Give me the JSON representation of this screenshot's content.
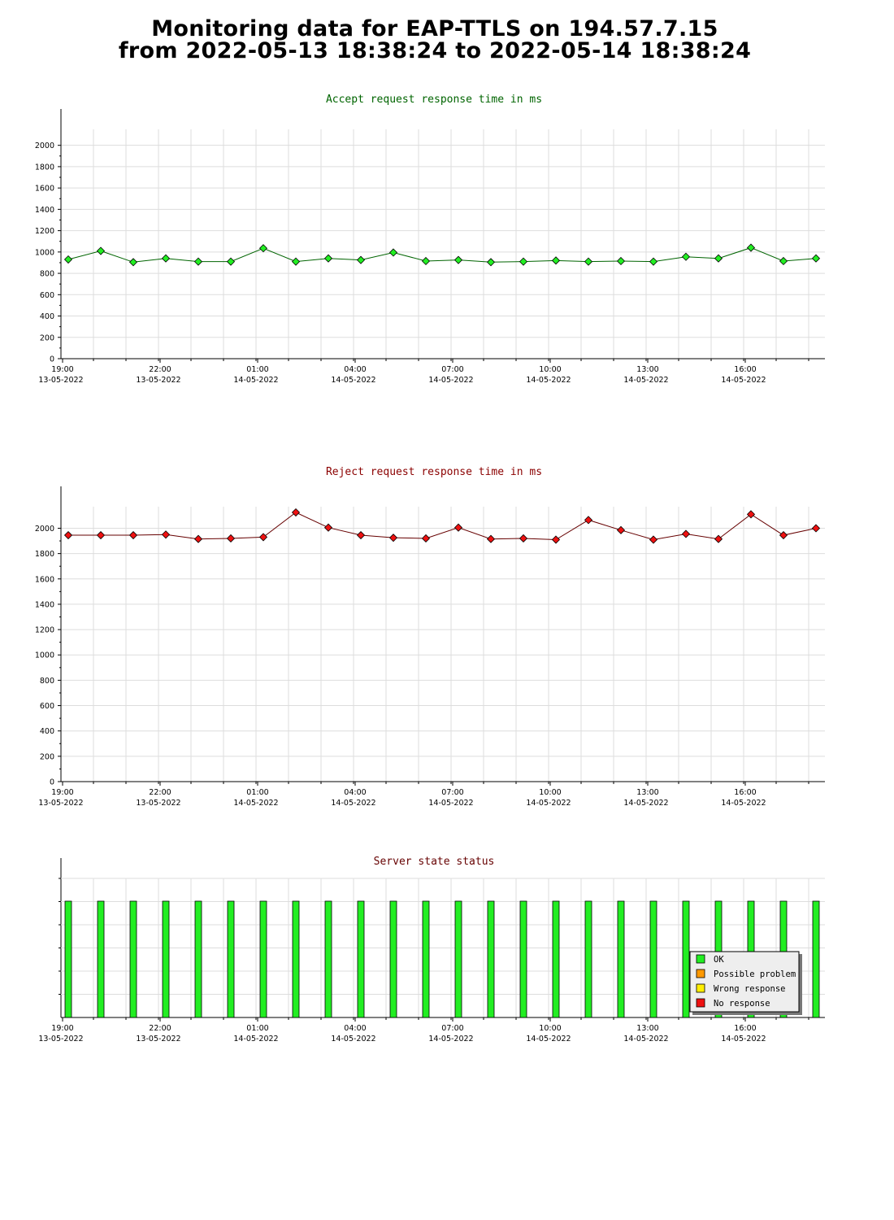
{
  "header": {
    "line1": "Monitoring data for EAP-TTLS on 194.57.7.15",
    "line2": "from 2022-05-13 18:38:24 to 2022-05-14 18:38:24"
  },
  "colors": {
    "accept_title": "#006400",
    "reject_title": "#8b0000",
    "status_title": "#660000",
    "accept_marker": "#22ee22",
    "accept_line": "#006400",
    "reject_marker": "#ee1111",
    "reject_line": "#660000",
    "ok": "#22ee22",
    "possible_problem": "#ff9900",
    "wrong_response": "#ffee00",
    "no_response": "#ee1111",
    "grid": "#dddddd"
  },
  "x_ticks": [
    {
      "time": "19:00",
      "date": "13-05-2022"
    },
    {
      "time": "22:00",
      "date": "13-05-2022"
    },
    {
      "time": "01:00",
      "date": "14-05-2022"
    },
    {
      "time": "04:00",
      "date": "14-05-2022"
    },
    {
      "time": "07:00",
      "date": "14-05-2022"
    },
    {
      "time": "10:00",
      "date": "14-05-2022"
    },
    {
      "time": "13:00",
      "date": "14-05-2022"
    },
    {
      "time": "16:00",
      "date": "14-05-2022"
    }
  ],
  "chart_data": [
    {
      "type": "line",
      "title": "Accept request response time in ms",
      "ylim": [
        0,
        2150
      ],
      "y_ticks": [
        0,
        200,
        400,
        600,
        800,
        1000,
        1200,
        1400,
        1600,
        1800,
        2000
      ],
      "grid": true,
      "series": [
        {
          "values": [
            930,
            1010,
            905,
            940,
            910,
            910,
            1035,
            910,
            940,
            925,
            995,
            915,
            925,
            905,
            910,
            920,
            910,
            915,
            910,
            955,
            940,
            1040,
            915,
            940
          ]
        }
      ]
    },
    {
      "type": "line",
      "title": "Reject request response time in ms",
      "ylim": [
        0,
        2170
      ],
      "y_ticks": [
        0,
        200,
        400,
        600,
        800,
        1000,
        1200,
        1400,
        1600,
        1800,
        2000
      ],
      "grid": true,
      "series": [
        {
          "values": [
            1945,
            1945,
            1945,
            1950,
            1915,
            1920,
            1930,
            2125,
            2005,
            1945,
            1925,
            1920,
            2005,
            1915,
            1920,
            1910,
            2065,
            1985,
            1910,
            1955,
            1915,
            2110,
            1945,
            2000
          ]
        }
      ]
    },
    {
      "type": "bar",
      "title": "Server state status",
      "grid": true,
      "series": [
        {
          "name": "OK",
          "values": [
            1,
            1,
            1,
            1,
            1,
            1,
            1,
            1,
            1,
            1,
            1,
            1,
            1,
            1,
            1,
            1,
            1,
            1,
            1,
            1,
            1,
            1,
            1,
            1
          ]
        },
        {
          "name": "Possible problem",
          "values": [
            0,
            0,
            0,
            0,
            0,
            0,
            0,
            0,
            0,
            0,
            0,
            0,
            0,
            0,
            0,
            0,
            0,
            0,
            0,
            0,
            0,
            0,
            0,
            0
          ]
        },
        {
          "name": "Wrong response",
          "values": [
            0,
            0,
            0,
            0,
            0,
            0,
            0,
            0,
            0,
            0,
            0,
            0,
            0,
            0,
            0,
            0,
            0,
            0,
            0,
            0,
            0,
            0,
            0,
            0
          ]
        },
        {
          "name": "No response",
          "values": [
            0,
            0,
            0,
            0,
            0,
            0,
            0,
            0,
            0,
            0,
            0,
            0,
            0,
            0,
            0,
            0,
            0,
            0,
            0,
            0,
            0,
            0,
            0,
            0
          ]
        }
      ],
      "legend": [
        "OK",
        "Possible problem",
        "Wrong response",
        "No response"
      ],
      "legend_position": "bottom-right"
    }
  ]
}
